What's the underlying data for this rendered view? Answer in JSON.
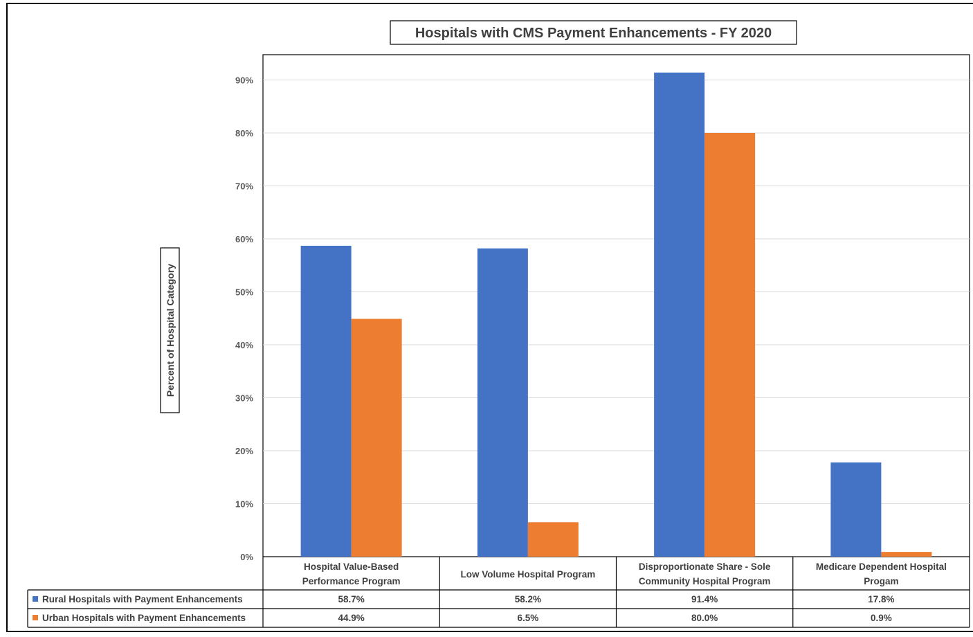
{
  "chart_data": {
    "type": "bar",
    "title": "Hospitals with CMS Payment Enhancements  - FY 2020",
    "ylabel": "Percent of Hospital Category",
    "xlabel": "",
    "ylim": [
      0,
      90
    ],
    "yticks": [
      "0%",
      "10%",
      "20%",
      "30%",
      "40%",
      "50%",
      "60%",
      "70%",
      "80%",
      "90%"
    ],
    "grid": true,
    "legend": "data-table-left",
    "categories": [
      [
        "Hospital Value-Based",
        "Performance Program"
      ],
      [
        "Low Volume Hospital Program"
      ],
      [
        "Disproportionate Share - Sole",
        "Community Hospital Program"
      ],
      [
        "Medicare Dependent Hospital",
        "Progam"
      ]
    ],
    "series": [
      {
        "name": "Rural Hospitals with Payment Enhancements",
        "color": "#4472C4",
        "values": [
          58.7,
          58.2,
          91.4,
          17.8
        ],
        "labels": [
          "58.7%",
          "58.2%",
          "91.4%",
          "17.8%"
        ]
      },
      {
        "name": "Urban Hospitals with Payment Enhancements",
        "color": "#ED7D31",
        "values": [
          44.9,
          6.5,
          80.0,
          0.9
        ],
        "labels": [
          "44.9%",
          "6.5%",
          "80.0%",
          "0.9%"
        ]
      }
    ]
  }
}
